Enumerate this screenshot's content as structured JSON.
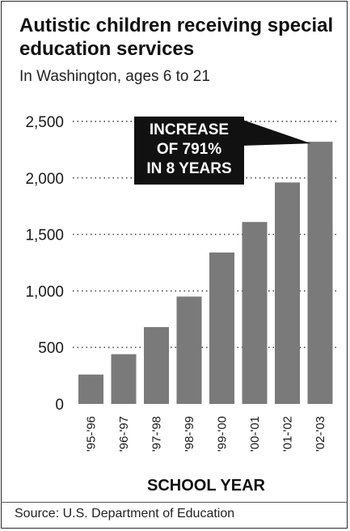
{
  "chart_data": {
    "type": "bar",
    "title": "Autistic children receiving special education services",
    "subtitle": "In Washington, ages 6 to 21",
    "xlabel": "SCHOOL YEAR",
    "ylabel": "",
    "categories": [
      "'95-'96",
      "'96-'97",
      "'97-'98",
      "'98-'99",
      "'99-'00",
      "'00-'01",
      "'01-'02",
      "'02-'03"
    ],
    "values": [
      260,
      440,
      680,
      950,
      1340,
      1610,
      1960,
      2320
    ],
    "ylim": [
      0,
      2500
    ],
    "yticks": [
      0,
      500,
      1000,
      1500,
      2000,
      2500
    ],
    "ytick_labels": [
      "0",
      "500",
      "1,000",
      "1,500",
      "2,000",
      "2,500"
    ],
    "grid": "dotted horizontal",
    "bar_color": "#7a7a7a",
    "annotation": {
      "lines": [
        "INCREASE",
        "OF 791%",
        "IN 8 YEARS"
      ],
      "background": "#111111",
      "text_color": "#ffffff"
    },
    "source": "Source: U.S. Department  of Education"
  }
}
